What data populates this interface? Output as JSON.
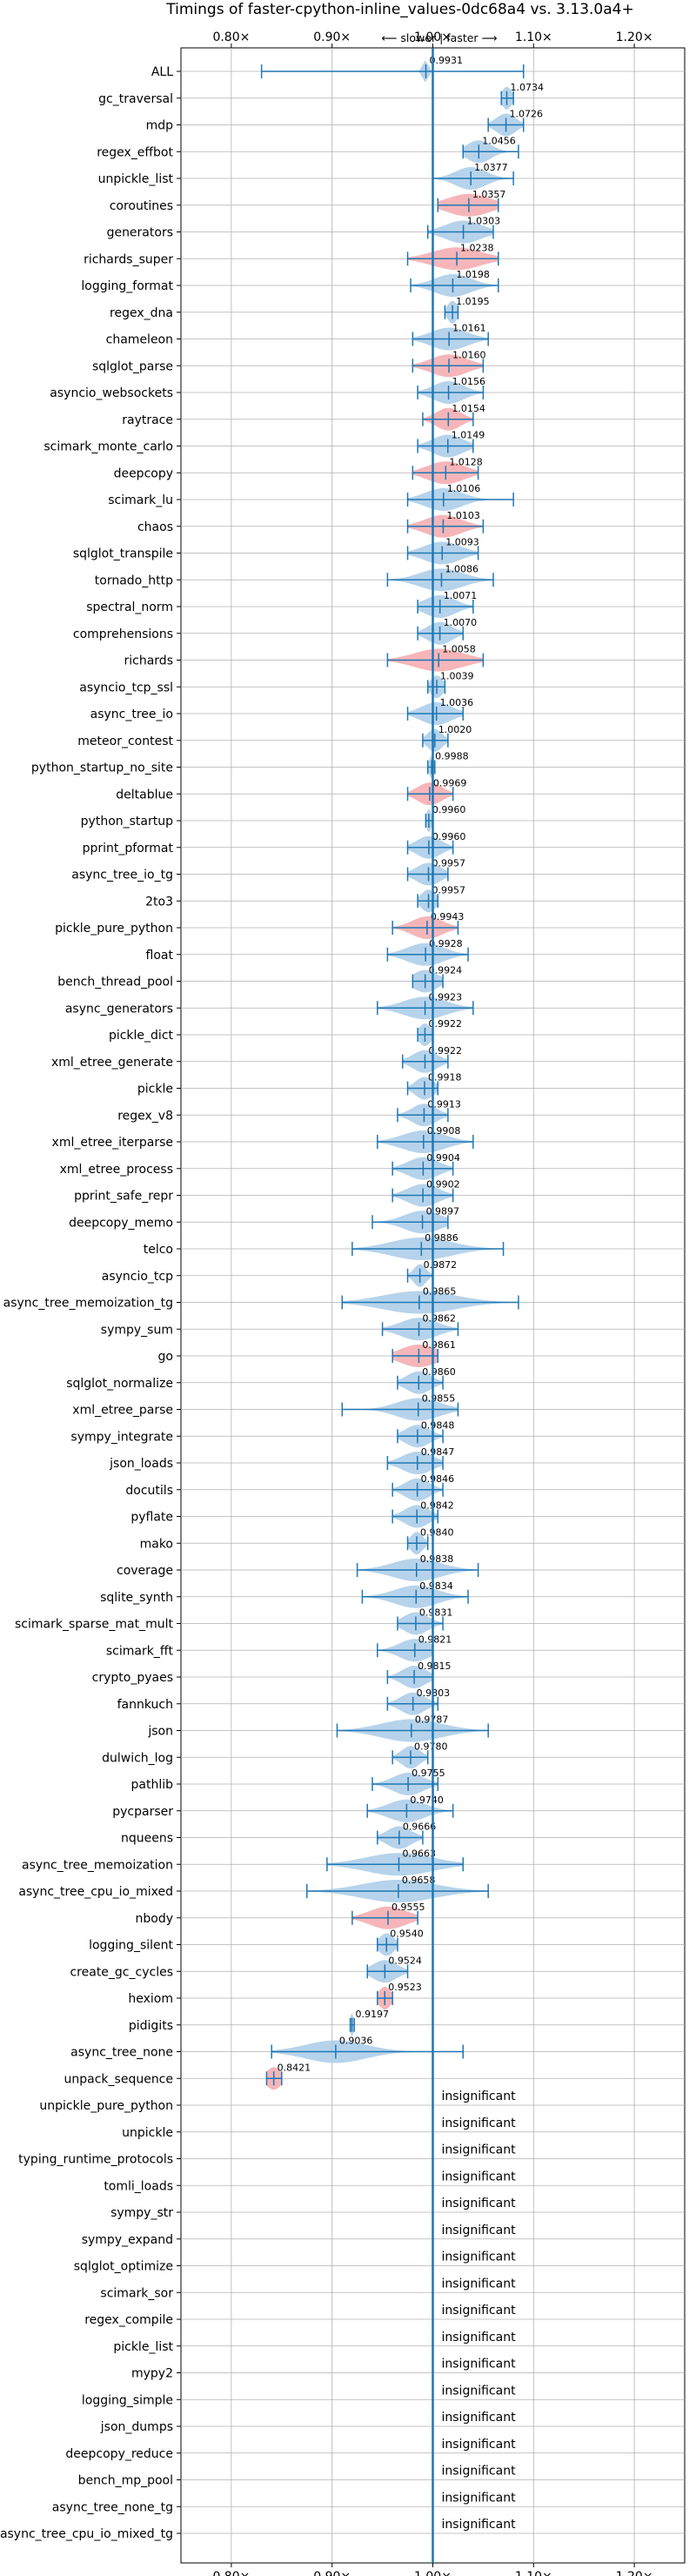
{
  "chart_data": {
    "type": "violin",
    "title": "Timings of faster-cpython-inline_values-0dc68a4 vs. 3.13.0a4+",
    "subtitle": "⟵ slower  |  faster ⟶",
    "xlim": [
      0.75,
      1.25
    ],
    "x_ticks": [
      0.8,
      0.9,
      1.0,
      1.1,
      1.2
    ],
    "x_tick_labels": [
      "0.80×",
      "0.90×",
      "1.00×",
      "1.10×",
      "1.20×"
    ],
    "reference_line": 1.0,
    "grid": true,
    "colors": {
      "faster": "#a9cbe8",
      "slower": "#f4a9ad",
      "line": "#1f77b4",
      "grid": "#b0b0b0"
    },
    "benchmarks": [
      {
        "name": "ALL",
        "value": 0.9931,
        "lo": 0.83,
        "hi": 1.09,
        "spread": 0.004,
        "color": "blue"
      },
      {
        "name": "gc_traversal",
        "value": 1.0734,
        "lo": 1.068,
        "hi": 1.08,
        "spread": 0.008,
        "color": "blue"
      },
      {
        "name": "mdp",
        "value": 1.0726,
        "lo": 1.055,
        "hi": 1.09,
        "spread": 0.016,
        "color": "blue"
      },
      {
        "name": "regex_effbot",
        "value": 1.0456,
        "lo": 1.03,
        "hi": 1.085,
        "spread": 0.02,
        "color": "blue"
      },
      {
        "name": "unpickle_list",
        "value": 1.0377,
        "lo": 1.0,
        "hi": 1.08,
        "spread": 0.025,
        "color": "blue"
      },
      {
        "name": "coroutines",
        "value": 1.0357,
        "lo": 1.005,
        "hi": 1.065,
        "spread": 0.035,
        "color": "red"
      },
      {
        "name": "generators",
        "value": 1.0303,
        "lo": 0.995,
        "hi": 1.06,
        "spread": 0.03,
        "color": "blue"
      },
      {
        "name": "richards_super",
        "value": 1.0238,
        "lo": 0.975,
        "hi": 1.065,
        "spread": 0.04,
        "color": "red"
      },
      {
        "name": "logging_format",
        "value": 1.0198,
        "lo": 0.978,
        "hi": 1.065,
        "spread": 0.03,
        "color": "blue"
      },
      {
        "name": "regex_dna",
        "value": 1.0195,
        "lo": 1.012,
        "hi": 1.025,
        "spread": 0.008,
        "color": "blue"
      },
      {
        "name": "chameleon",
        "value": 1.0161,
        "lo": 0.98,
        "hi": 1.055,
        "spread": 0.03,
        "color": "blue"
      },
      {
        "name": "sqlglot_parse",
        "value": 1.016,
        "lo": 0.98,
        "hi": 1.05,
        "spread": 0.03,
        "color": "red"
      },
      {
        "name": "asyncio_websockets",
        "value": 1.0156,
        "lo": 0.985,
        "hi": 1.05,
        "spread": 0.025,
        "color": "blue"
      },
      {
        "name": "raytrace",
        "value": 1.0154,
        "lo": 0.99,
        "hi": 1.04,
        "spread": 0.02,
        "color": "red"
      },
      {
        "name": "scimark_monte_carlo",
        "value": 1.0149,
        "lo": 0.985,
        "hi": 1.04,
        "spread": 0.025,
        "color": "blue"
      },
      {
        "name": "deepcopy",
        "value": 1.0128,
        "lo": 0.98,
        "hi": 1.045,
        "spread": 0.03,
        "color": "red"
      },
      {
        "name": "scimark_lu",
        "value": 1.0106,
        "lo": 0.975,
        "hi": 1.08,
        "spread": 0.03,
        "color": "blue"
      },
      {
        "name": "chaos",
        "value": 1.0103,
        "lo": 0.975,
        "hi": 1.05,
        "spread": 0.03,
        "color": "red"
      },
      {
        "name": "sqlglot_transpile",
        "value": 1.0093,
        "lo": 0.975,
        "hi": 1.045,
        "spread": 0.03,
        "color": "blue"
      },
      {
        "name": "tornado_http",
        "value": 1.0086,
        "lo": 0.955,
        "hi": 1.06,
        "spread": 0.035,
        "color": "blue"
      },
      {
        "name": "spectral_norm",
        "value": 1.0071,
        "lo": 0.985,
        "hi": 1.04,
        "spread": 0.025,
        "color": "blue"
      },
      {
        "name": "comprehensions",
        "value": 1.007,
        "lo": 0.985,
        "hi": 1.03,
        "spread": 0.02,
        "color": "blue"
      },
      {
        "name": "richards",
        "value": 1.0058,
        "lo": 0.955,
        "hi": 1.05,
        "spread": 0.04,
        "color": "red"
      },
      {
        "name": "asyncio_tcp_ssl",
        "value": 1.0039,
        "lo": 0.995,
        "hi": 1.012,
        "spread": 0.01,
        "color": "blue"
      },
      {
        "name": "async_tree_io",
        "value": 1.0036,
        "lo": 0.975,
        "hi": 1.03,
        "spread": 0.025,
        "color": "blue"
      },
      {
        "name": "meteor_contest",
        "value": 1.002,
        "lo": 0.99,
        "hi": 1.015,
        "spread": 0.012,
        "color": "blue"
      },
      {
        "name": "python_startup_no_site",
        "value": 0.9988,
        "lo": 0.995,
        "hi": 1.002,
        "spread": 0.004,
        "color": "blue"
      },
      {
        "name": "deltablue",
        "value": 0.9969,
        "lo": 0.975,
        "hi": 1.02,
        "spread": 0.02,
        "color": "red"
      },
      {
        "name": "python_startup",
        "value": 0.996,
        "lo": 0.993,
        "hi": 1.0,
        "spread": 0.004,
        "color": "blue"
      },
      {
        "name": "pprint_pformat",
        "value": 0.996,
        "lo": 0.975,
        "hi": 1.02,
        "spread": 0.02,
        "color": "blue"
      },
      {
        "name": "async_tree_io_tg",
        "value": 0.9957,
        "lo": 0.975,
        "hi": 1.015,
        "spread": 0.02,
        "color": "blue"
      },
      {
        "name": "2to3",
        "value": 0.9957,
        "lo": 0.985,
        "hi": 1.005,
        "spread": 0.012,
        "color": "blue"
      },
      {
        "name": "pickle_pure_python",
        "value": 0.9943,
        "lo": 0.96,
        "hi": 1.025,
        "spread": 0.025,
        "color": "red"
      },
      {
        "name": "float",
        "value": 0.9928,
        "lo": 0.955,
        "hi": 1.035,
        "spread": 0.03,
        "color": "blue"
      },
      {
        "name": "bench_thread_pool",
        "value": 0.9924,
        "lo": 0.98,
        "hi": 1.01,
        "spread": 0.02,
        "color": "blue"
      },
      {
        "name": "async_generators",
        "value": 0.9923,
        "lo": 0.945,
        "hi": 1.04,
        "spread": 0.035,
        "color": "blue"
      },
      {
        "name": "pickle_dict",
        "value": 0.9922,
        "lo": 0.985,
        "hi": 1.0,
        "spread": 0.01,
        "color": "blue"
      },
      {
        "name": "xml_etree_generate",
        "value": 0.9922,
        "lo": 0.97,
        "hi": 1.015,
        "spread": 0.02,
        "color": "blue"
      },
      {
        "name": "pickle",
        "value": 0.9918,
        "lo": 0.975,
        "hi": 1.005,
        "spread": 0.015,
        "color": "blue"
      },
      {
        "name": "regex_v8",
        "value": 0.9913,
        "lo": 0.965,
        "hi": 1.015,
        "spread": 0.02,
        "color": "blue"
      },
      {
        "name": "xml_etree_iterparse",
        "value": 0.9908,
        "lo": 0.945,
        "hi": 1.04,
        "spread": 0.035,
        "color": "blue"
      },
      {
        "name": "xml_etree_process",
        "value": 0.9904,
        "lo": 0.96,
        "hi": 1.02,
        "spread": 0.025,
        "color": "blue"
      },
      {
        "name": "pprint_safe_repr",
        "value": 0.9902,
        "lo": 0.96,
        "hi": 1.02,
        "spread": 0.025,
        "color": "blue"
      },
      {
        "name": "deepcopy_memo",
        "value": 0.9897,
        "lo": 0.94,
        "hi": 1.015,
        "spread": 0.03,
        "color": "blue"
      },
      {
        "name": "telco",
        "value": 0.9886,
        "lo": 0.92,
        "hi": 1.07,
        "spread": 0.05,
        "color": "blue"
      },
      {
        "name": "asyncio_tcp",
        "value": 0.9872,
        "lo": 0.975,
        "hi": 1.0,
        "spread": 0.01,
        "color": "blue"
      },
      {
        "name": "async_tree_memoization_tg",
        "value": 0.9865,
        "lo": 0.91,
        "hi": 1.085,
        "spread": 0.06,
        "color": "blue"
      },
      {
        "name": "sympy_sum",
        "value": 0.9862,
        "lo": 0.95,
        "hi": 1.025,
        "spread": 0.03,
        "color": "blue"
      },
      {
        "name": "go",
        "value": 0.9861,
        "lo": 0.96,
        "hi": 1.005,
        "spread": 0.03,
        "color": "red"
      },
      {
        "name": "sqlglot_normalize",
        "value": 0.986,
        "lo": 0.965,
        "hi": 1.01,
        "spread": 0.02,
        "color": "blue"
      },
      {
        "name": "xml_etree_parse",
        "value": 0.9855,
        "lo": 0.91,
        "hi": 1.025,
        "spread": 0.035,
        "color": "blue"
      },
      {
        "name": "sympy_integrate",
        "value": 0.9848,
        "lo": 0.965,
        "hi": 1.01,
        "spread": 0.02,
        "color": "blue"
      },
      {
        "name": "json_loads",
        "value": 0.9847,
        "lo": 0.955,
        "hi": 1.01,
        "spread": 0.025,
        "color": "blue"
      },
      {
        "name": "docutils",
        "value": 0.9846,
        "lo": 0.96,
        "hi": 1.01,
        "spread": 0.02,
        "color": "blue"
      },
      {
        "name": "pyflate",
        "value": 0.9842,
        "lo": 0.96,
        "hi": 1.005,
        "spread": 0.02,
        "color": "blue"
      },
      {
        "name": "mako",
        "value": 0.984,
        "lo": 0.975,
        "hi": 0.995,
        "spread": 0.01,
        "color": "blue"
      },
      {
        "name": "coverage",
        "value": 0.9838,
        "lo": 0.925,
        "hi": 1.045,
        "spread": 0.04,
        "color": "blue"
      },
      {
        "name": "sqlite_synth",
        "value": 0.9834,
        "lo": 0.93,
        "hi": 1.035,
        "spread": 0.035,
        "color": "blue"
      },
      {
        "name": "scimark_sparse_mat_mult",
        "value": 0.9831,
        "lo": 0.965,
        "hi": 1.01,
        "spread": 0.02,
        "color": "blue"
      },
      {
        "name": "scimark_fft",
        "value": 0.9821,
        "lo": 0.945,
        "hi": 1.0,
        "spread": 0.025,
        "color": "blue"
      },
      {
        "name": "crypto_pyaes",
        "value": 0.9815,
        "lo": 0.955,
        "hi": 1.0,
        "spread": 0.02,
        "color": "blue"
      },
      {
        "name": "fannkuch",
        "value": 0.9803,
        "lo": 0.955,
        "hi": 1.005,
        "spread": 0.02,
        "color": "blue"
      },
      {
        "name": "json",
        "value": 0.9787,
        "lo": 0.905,
        "hi": 1.055,
        "spread": 0.05,
        "color": "blue"
      },
      {
        "name": "dulwich_log",
        "value": 0.978,
        "lo": 0.96,
        "hi": 0.995,
        "spread": 0.015,
        "color": "blue"
      },
      {
        "name": "pathlib",
        "value": 0.9755,
        "lo": 0.94,
        "hi": 1.005,
        "spread": 0.025,
        "color": "blue"
      },
      {
        "name": "pycparser",
        "value": 0.974,
        "lo": 0.935,
        "hi": 1.02,
        "spread": 0.03,
        "color": "blue"
      },
      {
        "name": "nqueens",
        "value": 0.9666,
        "lo": 0.945,
        "hi": 0.99,
        "spread": 0.02,
        "color": "blue"
      },
      {
        "name": "async_tree_memoization",
        "value": 0.9663,
        "lo": 0.895,
        "hi": 1.03,
        "spread": 0.055,
        "color": "blue"
      },
      {
        "name": "async_tree_cpu_io_mixed",
        "value": 0.9658,
        "lo": 0.875,
        "hi": 1.055,
        "spread": 0.06,
        "color": "blue"
      },
      {
        "name": "nbody",
        "value": 0.9555,
        "lo": 0.92,
        "hi": 0.985,
        "spread": 0.03,
        "color": "red"
      },
      {
        "name": "logging_silent",
        "value": 0.954,
        "lo": 0.945,
        "hi": 0.965,
        "spread": 0.012,
        "color": "blue"
      },
      {
        "name": "create_gc_cycles",
        "value": 0.9524,
        "lo": 0.935,
        "hi": 0.975,
        "spread": 0.02,
        "color": "blue"
      },
      {
        "name": "hexiom",
        "value": 0.9523,
        "lo": 0.945,
        "hi": 0.96,
        "spread": 0.01,
        "color": "red"
      },
      {
        "name": "pidigits",
        "value": 0.9197,
        "lo": 0.918,
        "hi": 0.922,
        "spread": 0.003,
        "color": "blue"
      },
      {
        "name": "async_tree_none",
        "value": 0.9036,
        "lo": 0.84,
        "hi": 1.03,
        "spread": 0.05,
        "color": "blue"
      },
      {
        "name": "unpack_sequence",
        "value": 0.8421,
        "lo": 0.835,
        "hi": 0.85,
        "spread": 0.012,
        "color": "red"
      },
      {
        "name": "unpickle_pure_python",
        "value": null
      },
      {
        "name": "unpickle",
        "value": null
      },
      {
        "name": "typing_runtime_protocols",
        "value": null
      },
      {
        "name": "tomli_loads",
        "value": null
      },
      {
        "name": "sympy_str",
        "value": null
      },
      {
        "name": "sympy_expand",
        "value": null
      },
      {
        "name": "sqlglot_optimize",
        "value": null
      },
      {
        "name": "scimark_sor",
        "value": null
      },
      {
        "name": "regex_compile",
        "value": null
      },
      {
        "name": "pickle_list",
        "value": null
      },
      {
        "name": "mypy2",
        "value": null
      },
      {
        "name": "logging_simple",
        "value": null
      },
      {
        "name": "json_dumps",
        "value": null
      },
      {
        "name": "deepcopy_reduce",
        "value": null
      },
      {
        "name": "bench_mp_pool",
        "value": null
      },
      {
        "name": "async_tree_none_tg",
        "value": null
      },
      {
        "name": "async_tree_cpu_io_mixed_tg",
        "value": null
      }
    ],
    "insignificant_label": "insignificant"
  }
}
